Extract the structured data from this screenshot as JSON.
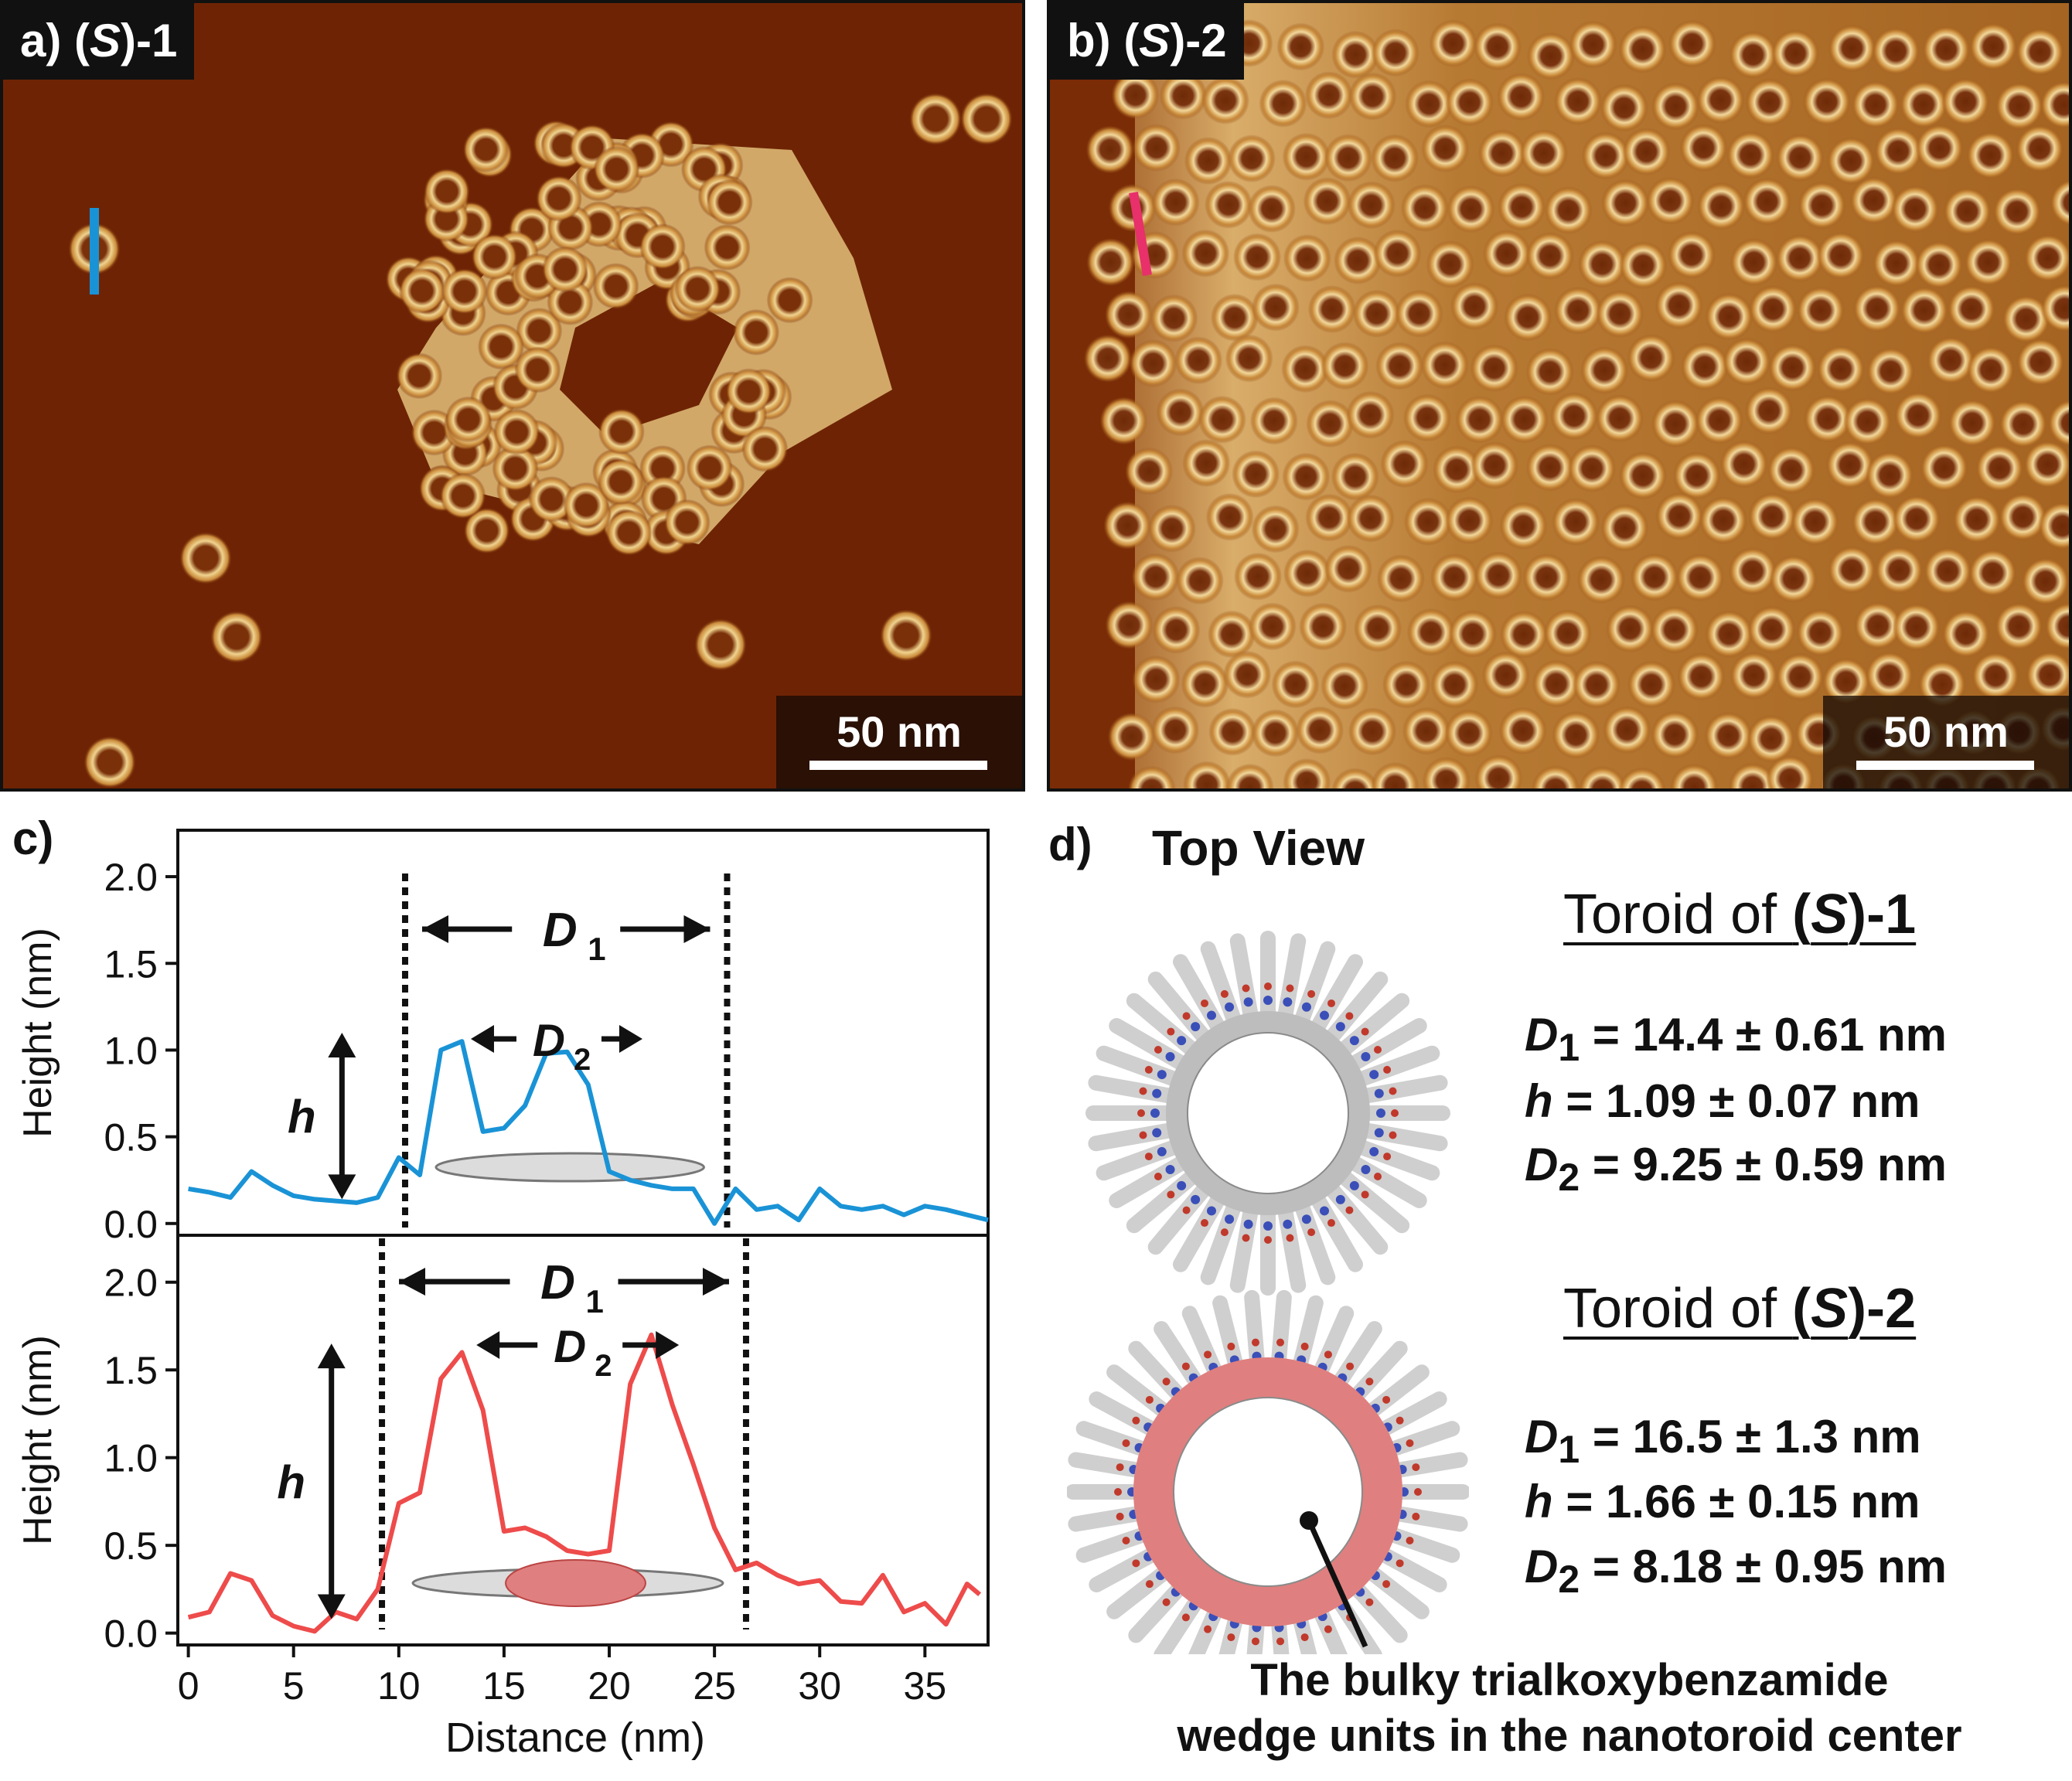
{
  "panels": {
    "a": {
      "tag": "a)",
      "title_pre": "(",
      "title_s": "S",
      "title_post": ")-1",
      "scale": "50 nm",
      "marker_color": "#1a93d6"
    },
    "b": {
      "tag": "b)",
      "title_pre": "(",
      "title_s": "S",
      "title_post": ")-2",
      "scale": "50 nm",
      "marker_color": "#e8306a"
    },
    "c": {
      "tag": "c)"
    },
    "d": {
      "tag": "d)",
      "top_view": "Top View"
    }
  },
  "colors": {
    "afm_bg": "#6e2404",
    "toroid_bright": "#f6e3a8",
    "series1": "#1a93d6",
    "series2": "#ee4b4b"
  },
  "chart_data": [
    {
      "type": "line",
      "xlabel": "Distance (nm)",
      "ylabel": "Height (nm)",
      "xlim": [
        -0.5,
        38
      ],
      "ylim": [
        -0.05,
        2.25
      ],
      "yticks": [
        "0.0",
        "0.5",
        "1.0",
        "1.5",
        "2.0"
      ],
      "xticks": [
        "0",
        "5",
        "10",
        "15",
        "20",
        "25",
        "30",
        "35"
      ],
      "annotations": {
        "d1": "D",
        "d1_sub": "1",
        "d2": "D",
        "d2_sub": "2",
        "h": "h",
        "dashed_x": [
          10.3,
          25.6
        ]
      },
      "series": [
        {
          "color": "#1a93d6",
          "x": [
            0,
            1,
            2,
            3,
            4,
            5,
            6,
            7,
            8,
            9,
            10,
            11,
            12,
            13,
            14,
            15,
            16,
            17,
            18,
            19,
            20,
            21,
            22,
            23,
            24,
            25,
            26,
            27,
            28,
            29,
            30,
            31,
            32,
            33,
            34,
            35,
            36,
            37,
            38
          ],
          "y": [
            0.2,
            0.18,
            0.15,
            0.3,
            0.22,
            0.16,
            0.14,
            0.13,
            0.12,
            0.15,
            0.38,
            0.28,
            1.0,
            1.05,
            0.53,
            0.55,
            0.68,
            0.98,
            0.99,
            0.8,
            0.3,
            0.25,
            0.22,
            0.2,
            0.2,
            0.0,
            0.2,
            0.08,
            0.1,
            0.02,
            0.2,
            0.1,
            0.08,
            0.1,
            0.05,
            0.1,
            0.08,
            0.05,
            0.02
          ]
        }
      ]
    },
    {
      "type": "line",
      "xlabel": "Distance (nm)",
      "ylabel": "Height (nm)",
      "xlim": [
        -0.5,
        38
      ],
      "ylim": [
        -0.05,
        2.25
      ],
      "yticks": [
        "0.0",
        "0.5",
        "1.0",
        "1.5",
        "2.0"
      ],
      "xticks": [
        "0",
        "5",
        "10",
        "15",
        "20",
        "25",
        "30",
        "35"
      ],
      "annotations": {
        "d1": "D",
        "d1_sub": "1",
        "d2": "D",
        "d2_sub": "2",
        "h": "h",
        "dashed_x": [
          9.2,
          26.5
        ]
      },
      "series": [
        {
          "color": "#ee4b4b",
          "x": [
            0,
            1,
            2,
            3,
            4,
            5,
            6,
            7,
            8,
            9,
            10,
            11,
            12,
            13,
            14,
            15,
            16,
            17,
            18,
            19,
            20,
            21,
            22,
            23,
            24,
            25,
            26,
            27,
            28,
            29,
            30,
            31,
            32,
            33,
            34,
            35,
            36,
            37,
            37.6
          ],
          "y": [
            0.09,
            0.12,
            0.34,
            0.3,
            0.1,
            0.04,
            0.01,
            0.12,
            0.08,
            0.25,
            0.74,
            0.8,
            1.45,
            1.6,
            1.27,
            0.58,
            0.6,
            0.55,
            0.47,
            0.45,
            0.47,
            1.42,
            1.7,
            1.3,
            0.96,
            0.6,
            0.36,
            0.4,
            0.33,
            0.28,
            0.3,
            0.18,
            0.17,
            0.33,
            0.12,
            0.17,
            0.05,
            0.28,
            0.22
          ]
        }
      ]
    }
  ],
  "toroids": [
    {
      "heading_pre": "Toroid of ",
      "heading_s_pre": "(",
      "heading_s": "S",
      "heading_s_post": ")-1",
      "d1_label": "D",
      "d1_sub": "1",
      "d1_val": " = 14.4 ± 0.61 nm",
      "h_label": "h",
      "h_val": " = 1.09 ± 0.07 nm",
      "d2_label": "D",
      "d2_sub": "2",
      "d2_val": " = 9.25 ± 0.59 nm"
    },
    {
      "heading_pre": "Toroid of ",
      "heading_s_pre": "(",
      "heading_s": "S",
      "heading_s_post": ")-2",
      "d1_label": "D",
      "d1_sub": "1",
      "d1_val": " = 16.5 ± 1.3 nm",
      "h_label": "h",
      "h_val": " = 1.66 ± 0.15 nm",
      "d2_label": "D",
      "d2_sub": "2",
      "d2_val": " = 8.18 ± 0.95 nm"
    }
  ],
  "caption_d": [
    "The bulky trialkoxybenzamide",
    "wedge units in the nanotoroid center"
  ]
}
